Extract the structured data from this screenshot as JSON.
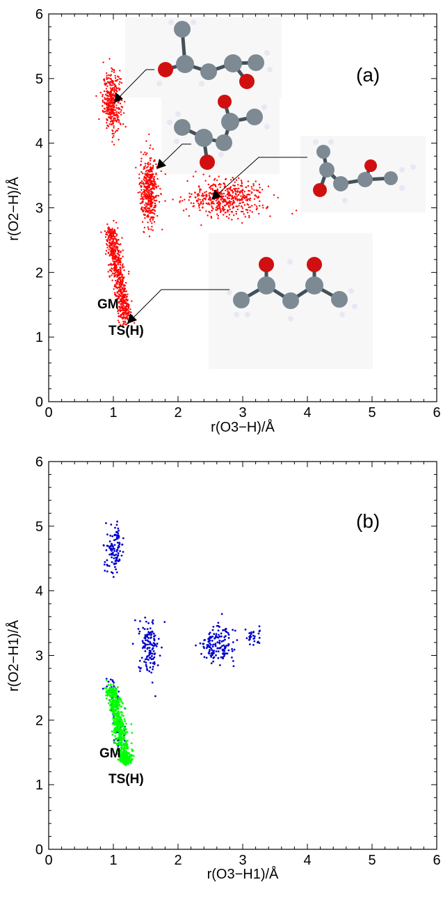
{
  "chart_data": [
    {
      "type": "scatter",
      "panel_label": "(a)",
      "xlabel": "r(O3−H)/Å",
      "ylabel": "r(O2−H)/Å",
      "xlim": [
        0,
        6
      ],
      "ylim": [
        0,
        6
      ],
      "xticks": [
        "0",
        "1",
        "2",
        "3",
        "4",
        "5",
        "6"
      ],
      "yticks": [
        "0",
        "1",
        "2",
        "3",
        "4",
        "5",
        "6"
      ],
      "annotations": [
        "GM",
        "TS(H)"
      ],
      "series": [
        {
          "color": "#ff0000",
          "clusters": [
            {
              "shape": "blob",
              "center": [
                0.98,
                4.65
              ],
              "spread": [
                0.07,
                0.22
              ],
              "count": 380
            },
            {
              "shape": "blob",
              "center": [
                1.55,
                3.25
              ],
              "spread": [
                0.07,
                0.28
              ],
              "count": 420
            },
            {
              "shape": "blob",
              "center": [
                2.75,
                3.15
              ],
              "spread": [
                0.3,
                0.14
              ],
              "count": 480
            },
            {
              "shape": "line",
              "from": [
                0.95,
                2.7
              ],
              "to": [
                1.2,
                1.25
              ],
              "jitter": [
                0.05,
                0.05
              ],
              "count": 650
            }
          ]
        }
      ],
      "structures": [
        {
          "name": "conformer-top",
          "pointer_target": [
            0.98,
            4.6
          ]
        },
        {
          "name": "conformer-middle-left",
          "pointer_target": [
            1.65,
            3.65
          ]
        },
        {
          "name": "conformer-middle-right",
          "pointer_target": [
            2.6,
            3.05
          ]
        },
        {
          "name": "conformer-gm",
          "pointer_target": [
            1.18,
            1.22
          ]
        }
      ]
    },
    {
      "type": "scatter",
      "panel_label": "(b)",
      "xlabel": "r(O3−H1)/Å",
      "ylabel": "r(O2−H1)/Å",
      "xlim": [
        0,
        6
      ],
      "ylim": [
        0,
        6
      ],
      "xticks": [
        "0",
        "1",
        "2",
        "3",
        "4",
        "5",
        "6"
      ],
      "yticks": [
        "0",
        "1",
        "2",
        "3",
        "4",
        "5",
        "6"
      ],
      "annotations": [
        "GM",
        "TS(H)"
      ],
      "series": [
        {
          "color": "#0000cc",
          "clusters": [
            {
              "shape": "blob",
              "center": [
                1.02,
                4.65
              ],
              "spread": [
                0.07,
                0.18
              ],
              "count": 110
            },
            {
              "shape": "blob",
              "center": [
                1.55,
                3.15
              ],
              "spread": [
                0.08,
                0.22
              ],
              "count": 130
            },
            {
              "shape": "blob",
              "center": [
                2.6,
                3.15
              ],
              "spread": [
                0.13,
                0.15
              ],
              "count": 150
            },
            {
              "shape": "blob",
              "center": [
                3.15,
                3.3
              ],
              "spread": [
                0.08,
                0.06
              ],
              "count": 30
            },
            {
              "shape": "line",
              "from": [
                0.97,
                2.6
              ],
              "to": [
                1.12,
                1.6
              ],
              "jitter": [
                0.05,
                0.06
              ],
              "count": 80
            }
          ]
        },
        {
          "color": "#00ff00",
          "clusters": [
            {
              "shape": "line",
              "from": [
                0.97,
                2.5
              ],
              "to": [
                1.2,
                1.35
              ],
              "jitter": [
                0.05,
                0.05
              ],
              "count": 550
            },
            {
              "shape": "blob",
              "center": [
                1.2,
                1.38
              ],
              "spread": [
                0.04,
                0.04
              ],
              "count": 120
            }
          ]
        }
      ]
    }
  ]
}
